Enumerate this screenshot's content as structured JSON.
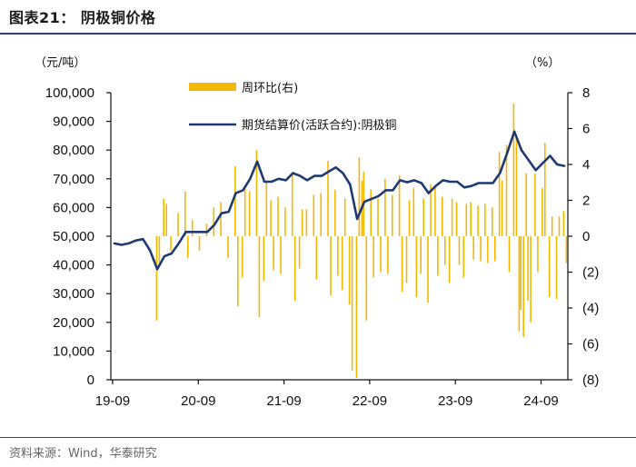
{
  "figure": {
    "title": "图表21： 阴极铜价格",
    "source": "资料来源：Wind，华泰研究"
  },
  "chart_data": {
    "type": "bar+line",
    "left_axis": {
      "unit": "（元/吨）",
      "range": [
        0,
        100000
      ],
      "tick_labels": [
        "0",
        "10,000",
        "20,000",
        "30,000",
        "40,000",
        "50,000",
        "60,000",
        "70,000",
        "80,000",
        "90,000",
        "100,000"
      ]
    },
    "right_axis": {
      "unit": "（%）",
      "range": [
        -8,
        8
      ],
      "tick_labels": [
        "(8)",
        "(6)",
        "(4)",
        "(2)",
        "0",
        "2",
        "4",
        "6",
        "8"
      ]
    },
    "x_axis": {
      "range": [
        "2019-09",
        "2024-12"
      ],
      "tick_labels": [
        "19-09",
        "20-09",
        "21-09",
        "22-09",
        "23-09",
        "24-09"
      ]
    },
    "legend": [
      "周环比(右)",
      "期货结算价(活跃合约):阴极铜"
    ],
    "colors": {
      "bar": "#f5b800",
      "line": "#1f3a73",
      "axis": "#111111"
    },
    "series": [
      {
        "name": "期货结算价(活跃合约):阴极铜",
        "axis": "left",
        "type": "line",
        "points": [
          [
            "2019-09",
            47500
          ],
          [
            "2019-10",
            47000
          ],
          [
            "2019-11",
            47500
          ],
          [
            "2019-12",
            48500
          ],
          [
            "2020-01",
            49000
          ],
          [
            "2020-02",
            45000
          ],
          [
            "2020-03",
            38500
          ],
          [
            "2020-04",
            43000
          ],
          [
            "2020-05",
            44000
          ],
          [
            "2020-06",
            47500
          ],
          [
            "2020-07",
            51500
          ],
          [
            "2020-08",
            51500
          ],
          [
            "2020-09",
            51500
          ],
          [
            "2020-10",
            51500
          ],
          [
            "2020-11",
            54000
          ],
          [
            "2020-12",
            58000
          ],
          [
            "2021-01",
            58500
          ],
          [
            "2021-02",
            65000
          ],
          [
            "2021-03",
            66000
          ],
          [
            "2021-04",
            70000
          ],
          [
            "2021-05",
            76000
          ],
          [
            "2021-06",
            69000
          ],
          [
            "2021-07",
            69000
          ],
          [
            "2021-08",
            70000
          ],
          [
            "2021-09",
            69500
          ],
          [
            "2021-10",
            72000
          ],
          [
            "2021-11",
            71000
          ],
          [
            "2021-12",
            69500
          ],
          [
            "2022-01",
            71000
          ],
          [
            "2022-02",
            71000
          ],
          [
            "2022-03",
            72500
          ],
          [
            "2022-04",
            74000
          ],
          [
            "2022-05",
            72000
          ],
          [
            "2022-06",
            68000
          ],
          [
            "2022-07",
            56000
          ],
          [
            "2022-08",
            62000
          ],
          [
            "2022-09",
            63000
          ],
          [
            "2022-10",
            64000
          ],
          [
            "2022-11",
            66000
          ],
          [
            "2022-12",
            66000
          ],
          [
            "2023-01",
            69500
          ],
          [
            "2023-02",
            68800
          ],
          [
            "2023-03",
            69500
          ],
          [
            "2023-04",
            68500
          ],
          [
            "2023-05",
            65000
          ],
          [
            "2023-06",
            67500
          ],
          [
            "2023-07",
            69500
          ],
          [
            "2023-08",
            69000
          ],
          [
            "2023-09",
            69000
          ],
          [
            "2023-10",
            67000
          ],
          [
            "2023-11",
            67500
          ],
          [
            "2023-12",
            68500
          ],
          [
            "2024-01",
            68500
          ],
          [
            "2024-02",
            68500
          ],
          [
            "2024-03",
            72000
          ],
          [
            "2024-04",
            79000
          ],
          [
            "2024-05",
            86500
          ],
          [
            "2024-06",
            80000
          ],
          [
            "2024-07",
            76500
          ],
          [
            "2024-08",
            73000
          ],
          [
            "2024-09",
            75500
          ],
          [
            "2024-10",
            78000
          ],
          [
            "2024-11",
            75000
          ],
          [
            "2024-12",
            74500
          ]
        ]
      },
      {
        "name": "周环比(右)",
        "axis": "right",
        "type": "bar",
        "points": [
          [
            "2020-03",
            -4.7
          ],
          [
            "2020-03",
            -1.6
          ],
          [
            "2020-04",
            2.1
          ],
          [
            "2020-04",
            1.8
          ],
          [
            "2020-05",
            -0.8
          ],
          [
            "2020-06",
            1.3
          ],
          [
            "2020-07",
            2.5
          ],
          [
            "2020-07",
            -1.2
          ],
          [
            "2020-08",
            0.9
          ],
          [
            "2020-09",
            -0.8
          ],
          [
            "2020-10",
            0.7
          ],
          [
            "2020-11",
            1.6
          ],
          [
            "2020-12",
            1.9
          ],
          [
            "2021-01",
            -1.2
          ],
          [
            "2021-02",
            3.9
          ],
          [
            "2021-02",
            -3.9
          ],
          [
            "2021-03",
            -2.3
          ],
          [
            "2021-03",
            2.8
          ],
          [
            "2021-04",
            2.5
          ],
          [
            "2021-05",
            4.8
          ],
          [
            "2021-05",
            -4.5
          ],
          [
            "2021-06",
            -2.5
          ],
          [
            "2021-06",
            3.0
          ],
          [
            "2021-07",
            2.0
          ],
          [
            "2021-07",
            -1.9
          ],
          [
            "2021-08",
            2.2
          ],
          [
            "2021-08",
            -2.1
          ],
          [
            "2021-09",
            1.6
          ],
          [
            "2021-10",
            3.5
          ],
          [
            "2021-10",
            -3.6
          ],
          [
            "2021-11",
            -1.8
          ],
          [
            "2021-11",
            1.5
          ],
          [
            "2021-12",
            1.5
          ],
          [
            "2022-01",
            2.3
          ],
          [
            "2022-01",
            -2.4
          ],
          [
            "2022-02",
            2.4
          ],
          [
            "2022-03",
            4.2
          ],
          [
            "2022-03",
            -3.3
          ],
          [
            "2022-04",
            2.6
          ],
          [
            "2022-04",
            -2.2
          ],
          [
            "2022-05",
            -3.0
          ],
          [
            "2022-05",
            2.1
          ],
          [
            "2022-06",
            -3.8
          ],
          [
            "2022-06",
            -7.5
          ],
          [
            "2022-07",
            -7.9
          ],
          [
            "2022-07",
            4.4
          ],
          [
            "2022-07",
            3.1
          ],
          [
            "2022-08",
            3.6
          ],
          [
            "2022-08",
            -4.7
          ],
          [
            "2022-09",
            2.6
          ],
          [
            "2022-09",
            -2.3
          ],
          [
            "2022-10",
            2.1
          ],
          [
            "2022-10",
            -2.0
          ],
          [
            "2022-11",
            3.2
          ],
          [
            "2022-11",
            -2.1
          ],
          [
            "2022-12",
            2.3
          ],
          [
            "2023-01",
            3.4
          ],
          [
            "2023-01",
            -3.1
          ],
          [
            "2023-02",
            -2.6
          ],
          [
            "2023-02",
            2.0
          ],
          [
            "2023-03",
            2.7
          ],
          [
            "2023-03",
            -3.4
          ],
          [
            "2023-04",
            -2.1
          ],
          [
            "2023-04",
            2.1
          ],
          [
            "2023-05",
            -3.7
          ],
          [
            "2023-05",
            2.9
          ],
          [
            "2023-06",
            2.8
          ],
          [
            "2023-06",
            -2.2
          ],
          [
            "2023-07",
            2.2
          ],
          [
            "2023-07",
            -1.6
          ],
          [
            "2023-08",
            -2.6
          ],
          [
            "2023-08",
            2.1
          ],
          [
            "2023-09",
            1.9
          ],
          [
            "2023-09",
            -1.6
          ],
          [
            "2023-10",
            -2.3
          ],
          [
            "2023-10",
            1.8
          ],
          [
            "2023-11",
            1.9
          ],
          [
            "2023-11",
            -1.3
          ],
          [
            "2023-12",
            1.7
          ],
          [
            "2023-12",
            -1.4
          ],
          [
            "2024-01",
            1.8
          ],
          [
            "2024-01",
            -1.5
          ],
          [
            "2024-02",
            1.6
          ],
          [
            "2024-02",
            -1.4
          ],
          [
            "2024-03",
            4.7
          ],
          [
            "2024-03",
            3.1
          ],
          [
            "2024-04",
            5.1
          ],
          [
            "2024-04",
            -2.0
          ],
          [
            "2024-05",
            7.4
          ],
          [
            "2024-05",
            5.6
          ],
          [
            "2024-05",
            -5.3
          ],
          [
            "2024-06",
            -4.1
          ],
          [
            "2024-06",
            -5.6
          ],
          [
            "2024-06",
            3.5
          ],
          [
            "2024-07",
            -3.6
          ],
          [
            "2024-07",
            -4.8
          ],
          [
            "2024-08",
            3.5
          ],
          [
            "2024-08",
            -2.0
          ],
          [
            "2024-09",
            2.7
          ],
          [
            "2024-09",
            5.2
          ],
          [
            "2024-10",
            -3.4
          ],
          [
            "2024-10",
            1.1
          ],
          [
            "2024-11",
            -3.5
          ],
          [
            "2024-11",
            1.1
          ],
          [
            "2024-12",
            1.4
          ],
          [
            "2024-12",
            -1.5
          ]
        ]
      }
    ]
  }
}
